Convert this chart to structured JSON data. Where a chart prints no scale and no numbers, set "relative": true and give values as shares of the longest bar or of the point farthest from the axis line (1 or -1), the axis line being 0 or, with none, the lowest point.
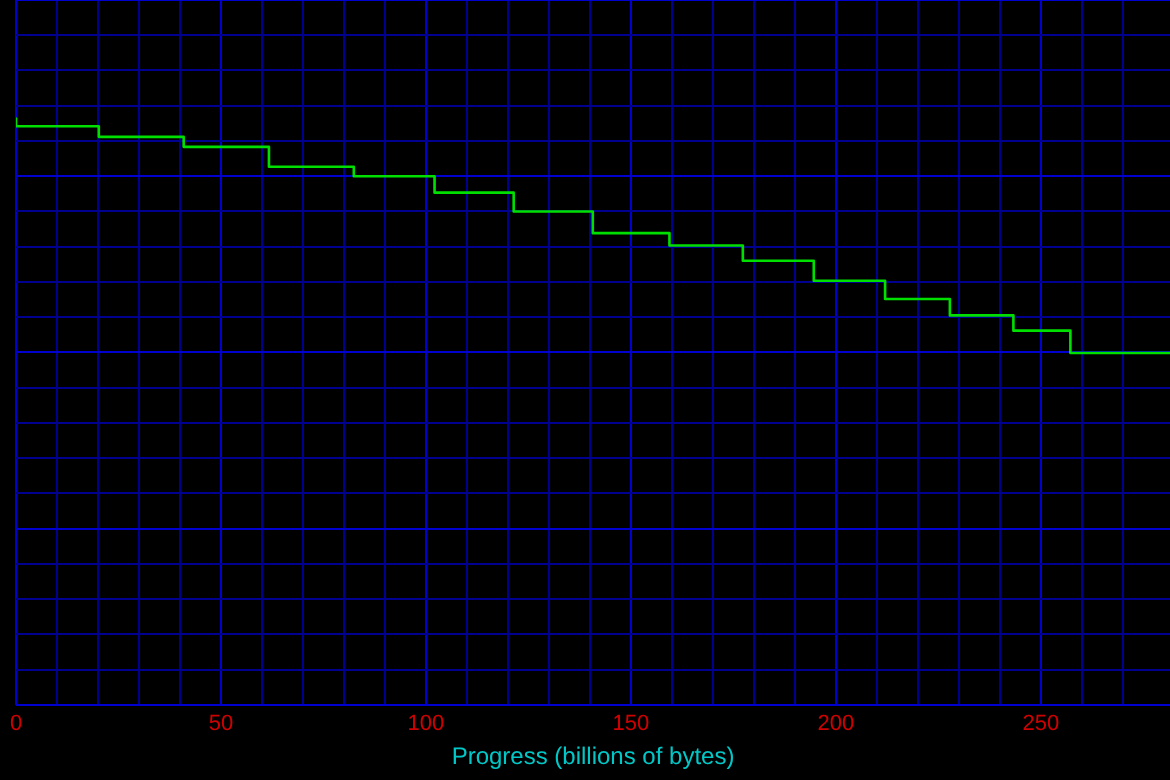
{
  "chart_data": {
    "type": "step",
    "xlabel": "Progress (billions of bytes)",
    "relative": true,
    "grid": true,
    "marker": "none",
    "line_style": "solid",
    "x": [
      0,
      20.2,
      40.9,
      61.7,
      82.4,
      102.1,
      121.4,
      140.7,
      159.4,
      177.3,
      194.6,
      212,
      227.8,
      243.3,
      257.2,
      270.7,
      281.5
    ],
    "series": [
      {
        "color": "#00e000",
        "values": [
          1,
          0.985,
          0.967,
          0.95,
          0.916,
          0.9,
          0.872,
          0.84,
          0.803,
          0.782,
          0.756,
          0.722,
          0.691,
          0.663,
          0.637,
          0.599,
          0.599
        ]
      }
    ],
    "xlim": [
      0,
      281.5
    ],
    "xticks": [
      0,
      {
        "value": 10,
        "label": null
      },
      {
        "value": 20,
        "label": null
      },
      {
        "value": 30,
        "label": null
      },
      {
        "value": 40,
        "label": null
      },
      50,
      {
        "value": 60,
        "label": null
      },
      {
        "value": 70,
        "label": null
      },
      {
        "value": 80,
        "label": null
      },
      {
        "value": 90,
        "label": null
      },
      100,
      {
        "value": 110,
        "label": null
      },
      {
        "value": 120,
        "label": null
      },
      {
        "value": 130,
        "label": null
      },
      {
        "value": 140,
        "label": null
      },
      150,
      {
        "value": 160,
        "label": null
      },
      {
        "value": 170,
        "label": null
      },
      {
        "value": 180,
        "label": null
      },
      {
        "value": 190,
        "label": null
      },
      200,
      {
        "value": 210,
        "label": null
      },
      {
        "value": 220,
        "label": null
      },
      {
        "value": 230,
        "label": null
      },
      {
        "value": 240,
        "label": null
      },
      250,
      {
        "value": 260,
        "label": null
      },
      {
        "value": 270,
        "label": null
      }
    ]
  }
}
